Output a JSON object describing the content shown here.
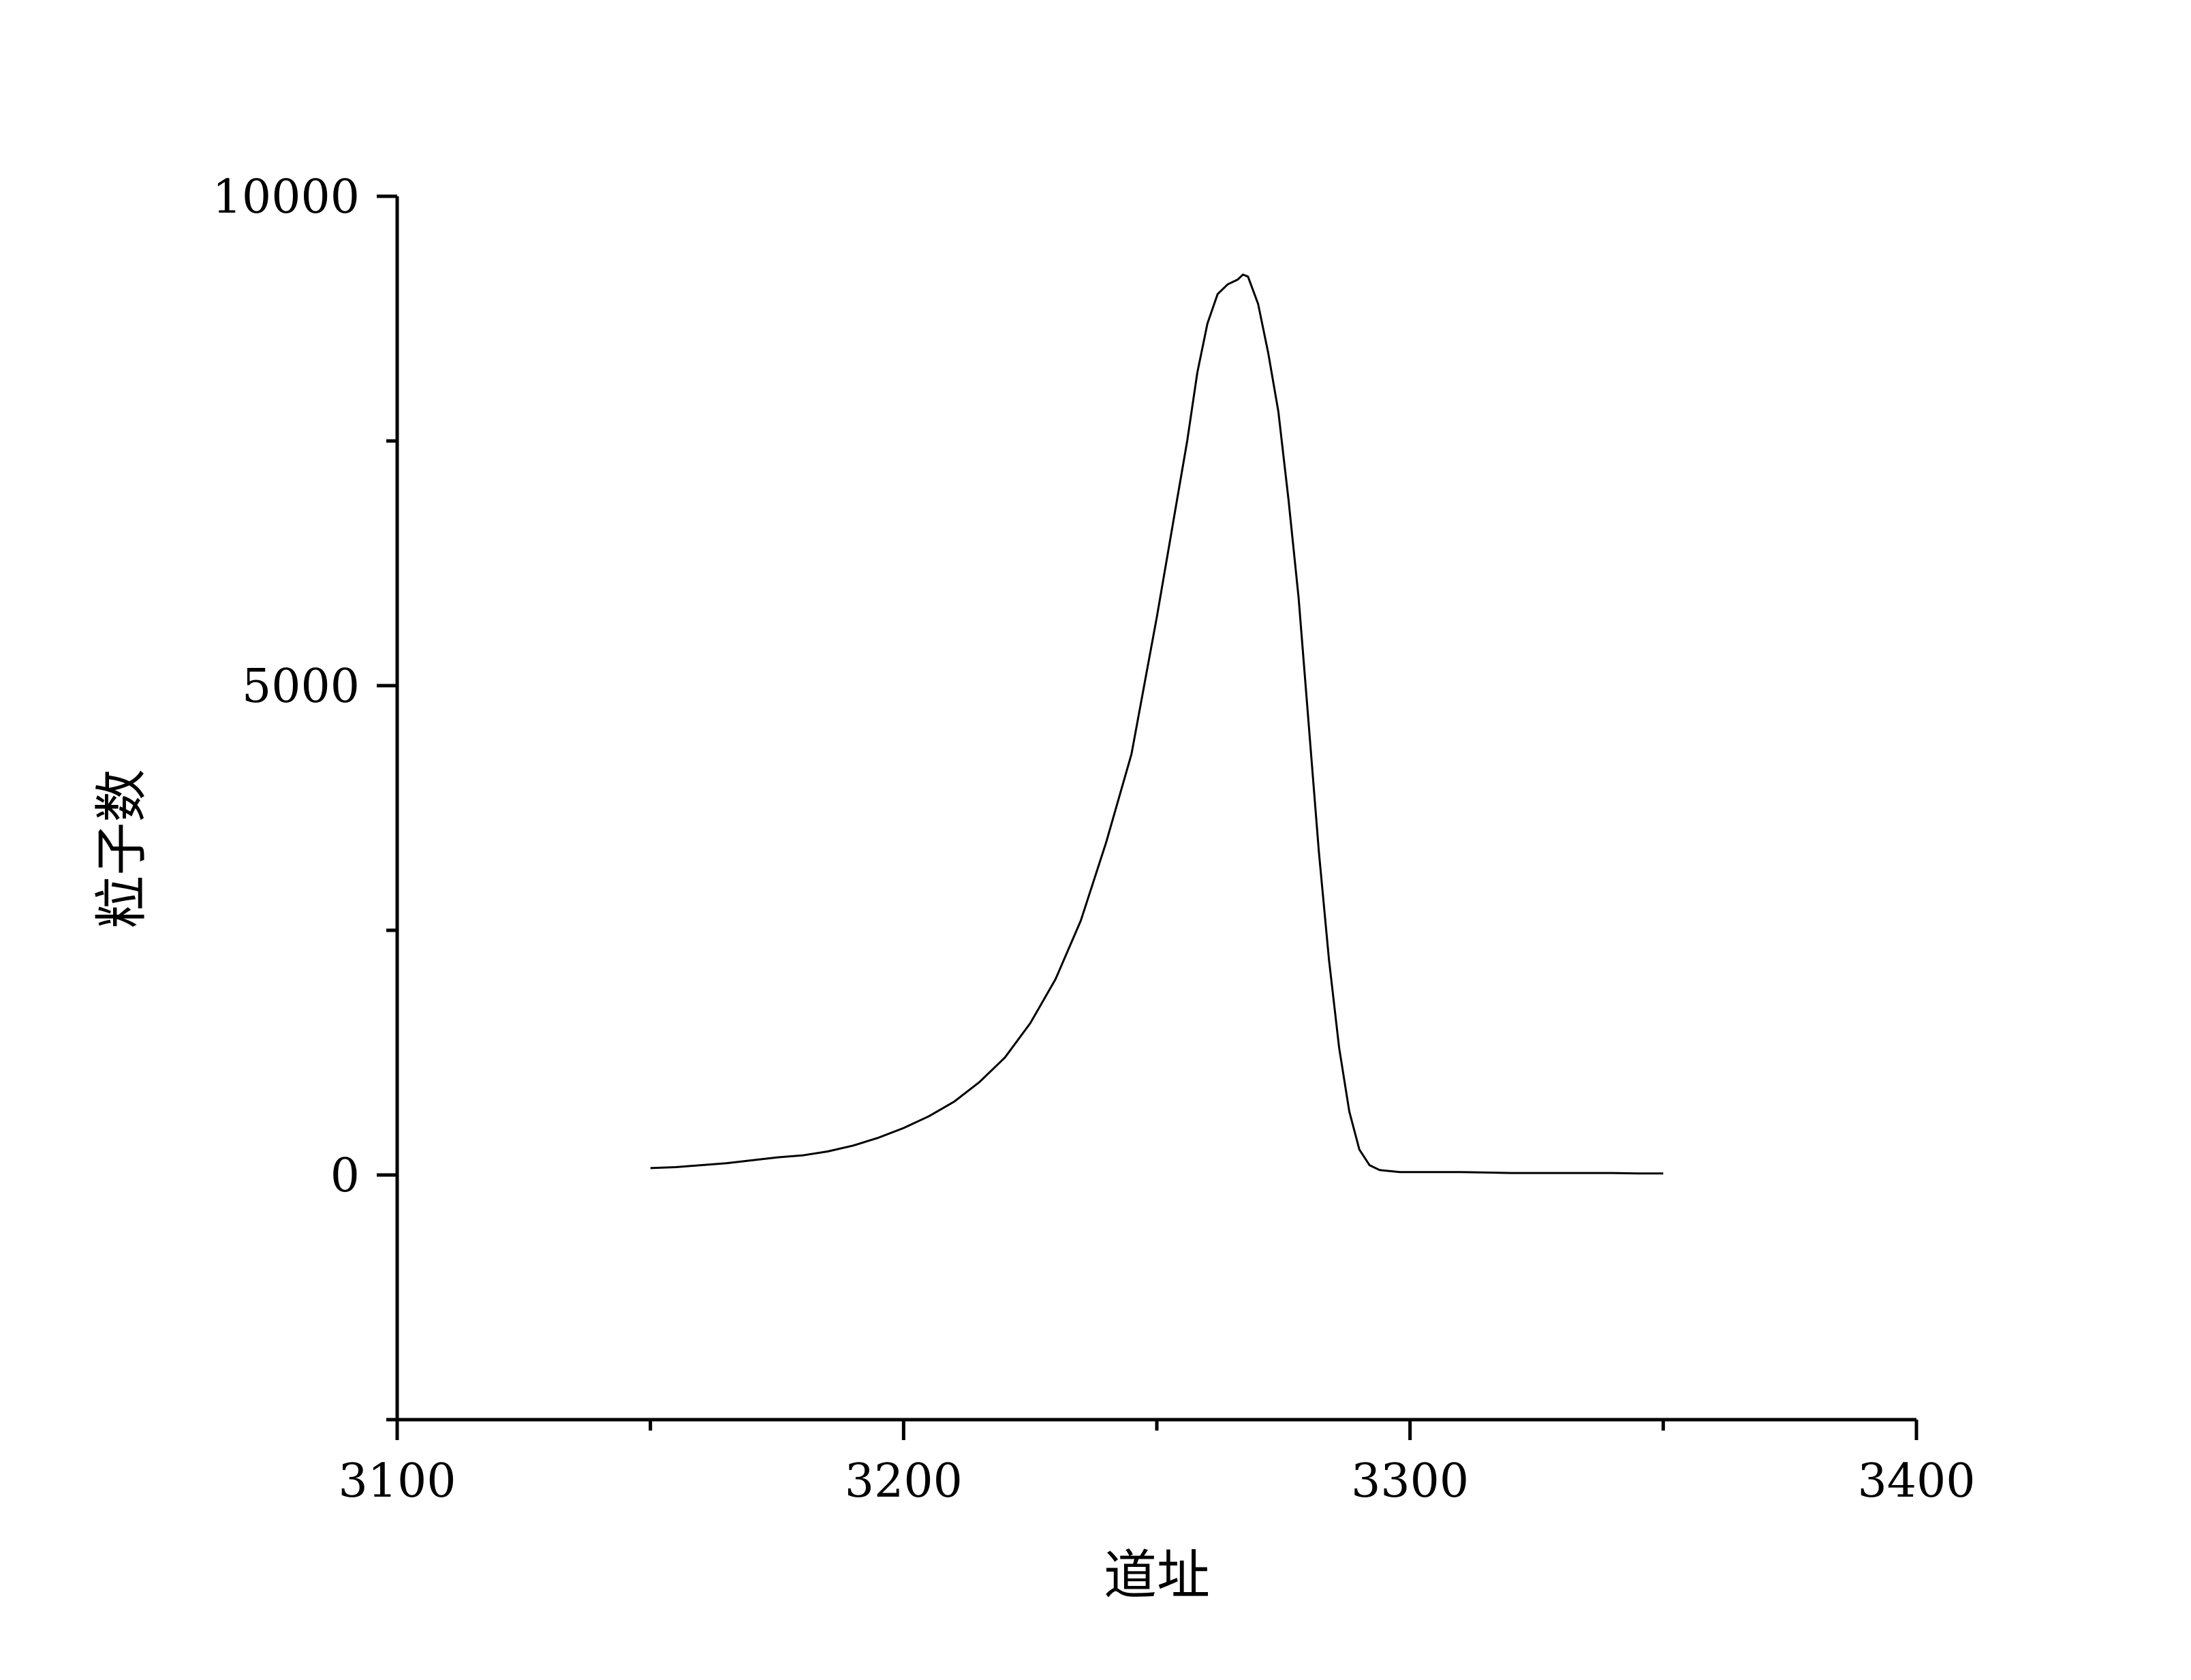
{
  "chart_data": {
    "type": "line",
    "title": "",
    "xlabel": "道址",
    "ylabel": "粒子数",
    "xlim": [
      3100,
      3400
    ],
    "ylim": [
      -2500,
      10000
    ],
    "x_ticks": [
      3100,
      3200,
      3300,
      3400
    ],
    "x_tick_labels": [
      "3100",
      "3200",
      "3300",
      "3400"
    ],
    "x_minor_ticks": [
      3150,
      3250,
      3350
    ],
    "y_ticks": [
      0,
      5000,
      10000
    ],
    "y_tick_labels": [
      "0",
      "5000",
      "10000"
    ],
    "y_minor_ticks": [
      -2500,
      2500,
      7500
    ],
    "grid": false,
    "legend": "none",
    "line_color": "#000000",
    "series": [
      {
        "x": [
          3150,
          3155,
          3160,
          3165,
          3170,
          3175,
          3180,
          3185,
          3190,
          3195,
          3200,
          3205,
          3210,
          3215,
          3220,
          3225,
          3230,
          3235,
          3240,
          3245,
          3250,
          3252,
          3254,
          3256,
          3258,
          3260,
          3262,
          3264,
          3266,
          3267,
          3268,
          3270,
          3272,
          3274,
          3276,
          3278,
          3280,
          3282,
          3284,
          3286,
          3288,
          3290,
          3292,
          3294,
          3296,
          3298,
          3300,
          3305,
          3310,
          3315,
          3320,
          3325,
          3330,
          3335,
          3340,
          3345,
          3350
        ],
        "y": [
          70,
          80,
          100,
          120,
          150,
          180,
          200,
          240,
          300,
          380,
          480,
          600,
          750,
          950,
          1200,
          1550,
          2000,
          2600,
          3400,
          4300,
          5700,
          6300,
          6900,
          7500,
          8200,
          8700,
          9000,
          9100,
          9150,
          9200,
          9180,
          8900,
          8400,
          7800,
          6900,
          5900,
          4600,
          3300,
          2200,
          1300,
          650,
          260,
          100,
          50,
          40,
          30,
          30,
          30,
          30,
          25,
          20,
          20,
          20,
          20,
          20,
          15,
          15
        ]
      }
    ]
  }
}
